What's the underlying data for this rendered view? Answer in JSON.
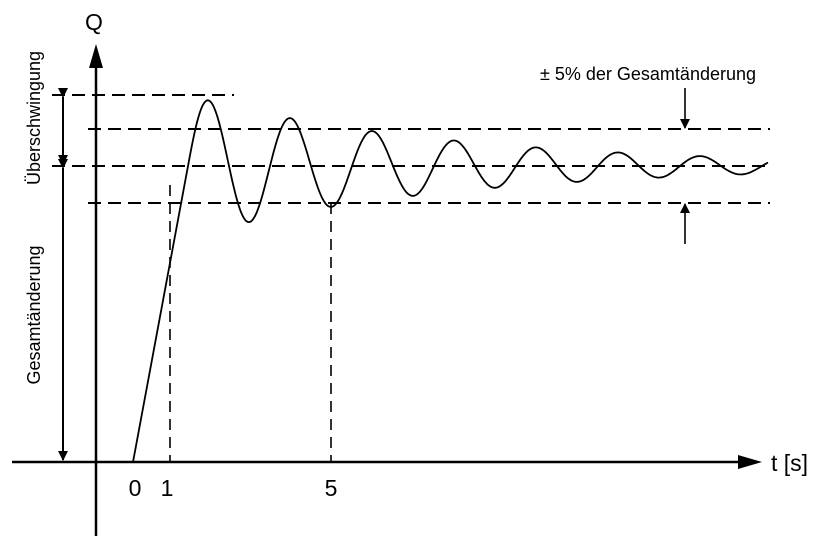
{
  "diagram": {
    "y_axis_label": "Q",
    "x_axis_label": "t [s]",
    "tick_0": "0",
    "tick_1": "1",
    "tick_5": "5",
    "overshoot_label": "Überschwingung",
    "total_change_label": "Gesamtänderung",
    "tolerance_label": "± 5% der Gesamtänderung"
  }
}
